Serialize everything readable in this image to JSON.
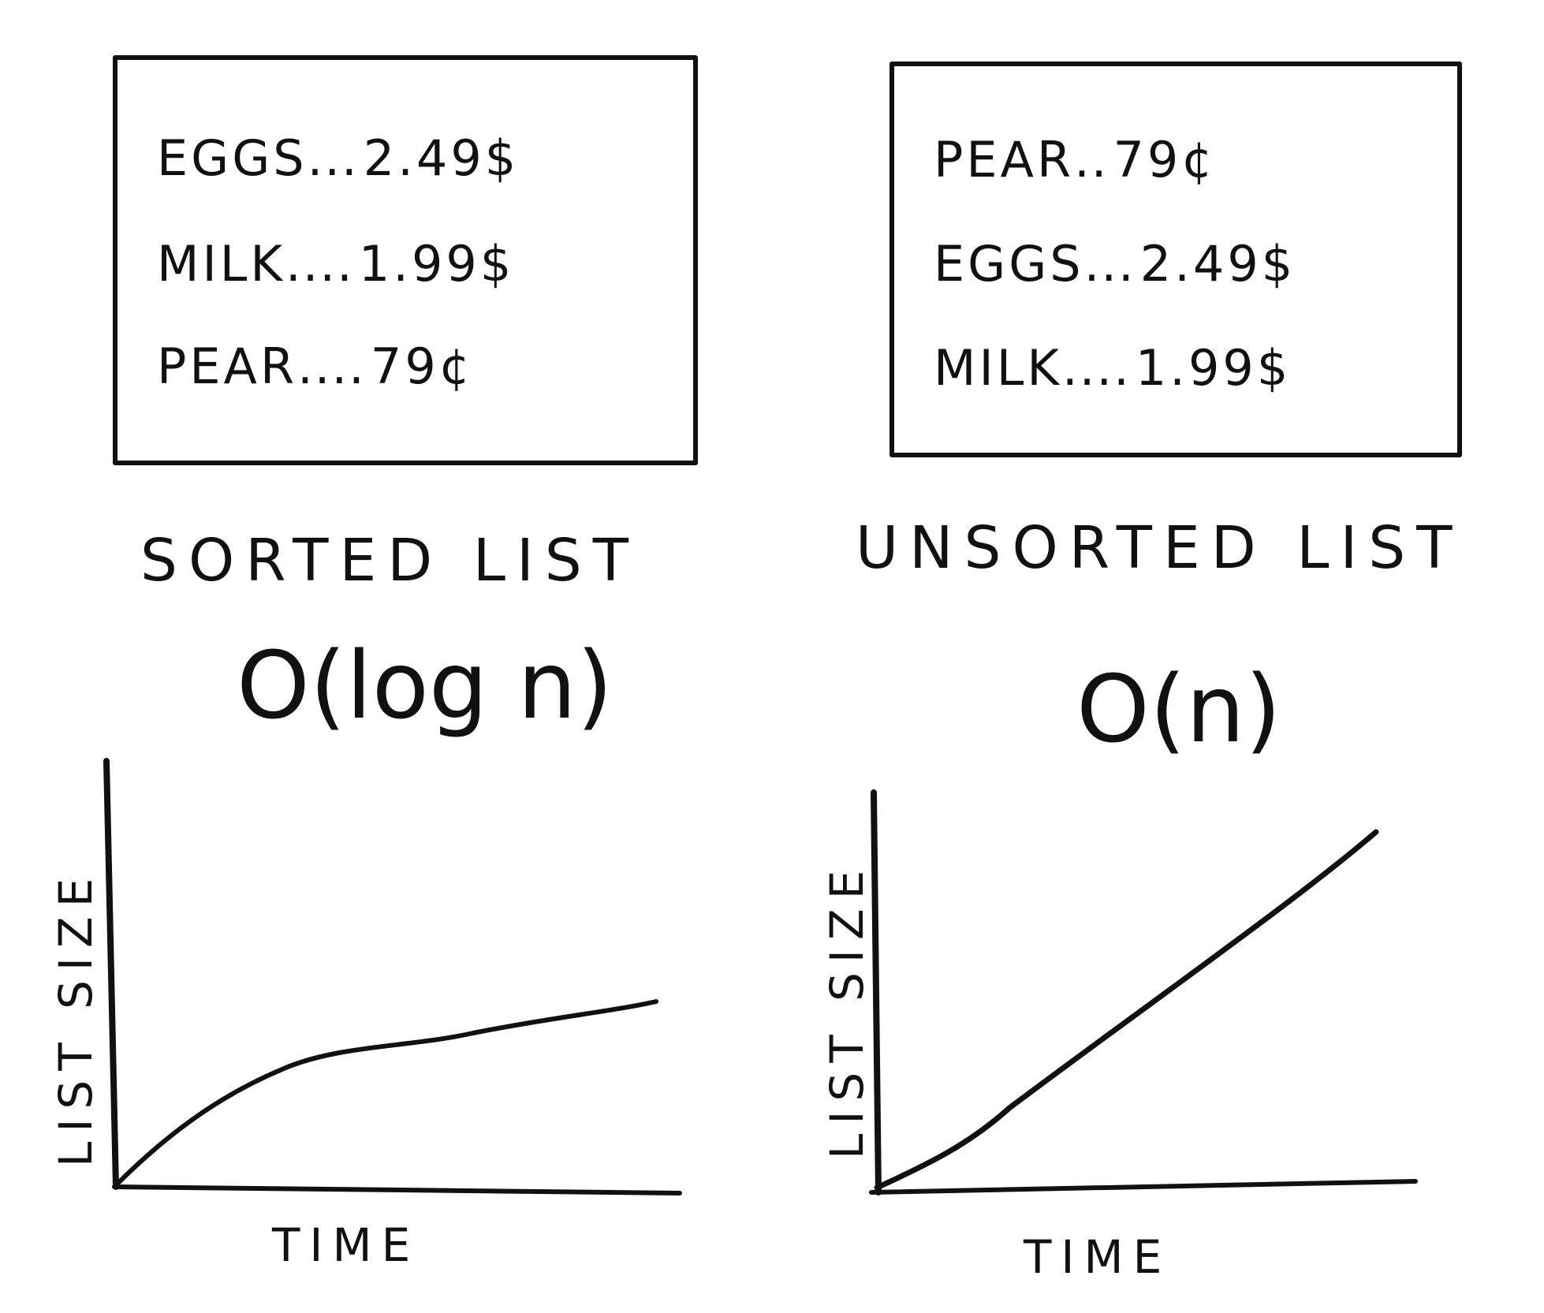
{
  "sorted": {
    "items": [
      {
        "name": "EGGS",
        "dots": "...",
        "price": "2.49$"
      },
      {
        "name": "MILK",
        "dots": "....",
        "price": "1.99$"
      },
      {
        "name": "PEAR",
        "dots": "....",
        "price": "79¢"
      }
    ],
    "caption": "SORTED LIST",
    "complexity": "O(log n)",
    "chart": {
      "xlabel": "TIME",
      "ylabel": "LIST SIZE",
      "curve": "logarithmic"
    }
  },
  "unsorted": {
    "items": [
      {
        "name": "PEAR",
        "dots": "..",
        "price": "79¢"
      },
      {
        "name": "EGGS",
        "dots": "...",
        "price": "2.49$"
      },
      {
        "name": "MILK",
        "dots": "....",
        "price": "1.99$"
      }
    ],
    "caption": "UNSORTED LIST",
    "complexity": "O(n)",
    "chart": {
      "xlabel": "TIME",
      "ylabel": "LIST SIZE",
      "curve": "linear"
    }
  },
  "colors": {
    "ink": "#111111",
    "paper": "#ffffff"
  }
}
